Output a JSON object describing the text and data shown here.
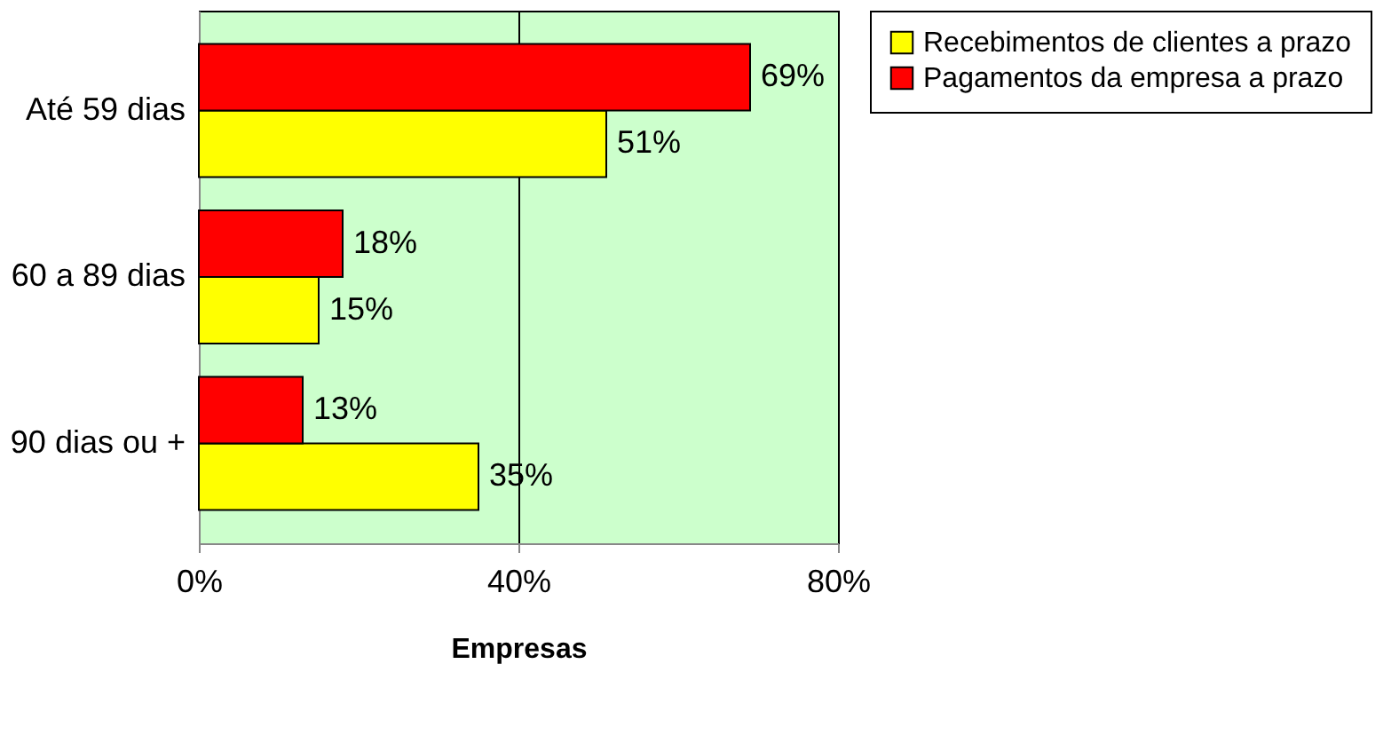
{
  "chart_data": {
    "type": "bar",
    "orientation": "horizontal",
    "xlabel": "Empresas",
    "categories": [
      "Até 59 dias",
      "60 a 89 dias",
      "90 dias ou +"
    ],
    "series": [
      {
        "name": "Recebimentos de clientes a prazo",
        "color": "#ffff00",
        "values": [
          51,
          15,
          35
        ],
        "value_labels": [
          "51%",
          "15%",
          "35%"
        ]
      },
      {
        "name": "Pagamentos da empresa a prazo",
        "color": "#ff0000",
        "values": [
          69,
          18,
          13
        ],
        "value_labels": [
          "69%",
          "18%",
          "13%"
        ]
      }
    ],
    "xlim": [
      0,
      80
    ],
    "xticks": [
      {
        "value": 0,
        "label": "0%"
      },
      {
        "value": 40,
        "label": "40%"
      },
      {
        "value": 80,
        "label": "80%"
      }
    ],
    "grid": "x",
    "legend": "right"
  }
}
